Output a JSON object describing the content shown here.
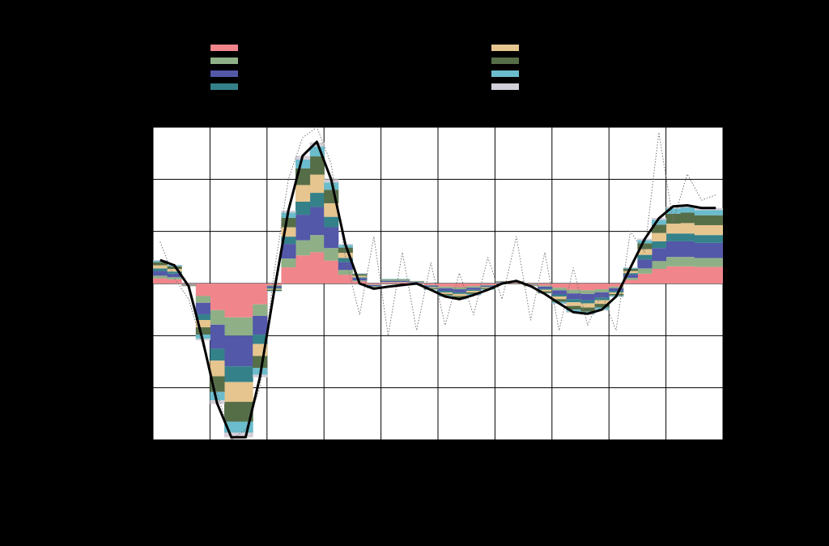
{
  "chart_data": {
    "type": "bar",
    "stacked": true,
    "grid": true,
    "xlim": [
      0,
      100
    ],
    "xticks": [
      0,
      10,
      20,
      30,
      40,
      50,
      60,
      70,
      80,
      90,
      100
    ],
    "ylim": [
      -3,
      3
    ],
    "yticks": [
      -3,
      -2,
      -1,
      0,
      1,
      2,
      3
    ],
    "x": [
      1.25,
      3.75,
      6.25,
      8.75,
      11.25,
      13.75,
      16.25,
      18.75,
      21.25,
      23.75,
      26.25,
      28.75,
      31.25,
      33.75,
      36.25,
      38.75,
      41.25,
      43.75,
      46.25,
      48.75,
      51.25,
      53.75,
      56.25,
      58.75,
      61.25,
      63.75,
      66.25,
      68.75,
      71.25,
      73.75,
      76.25,
      78.75,
      81.25,
      83.75,
      86.25,
      88.75,
      91.25,
      93.75,
      96.25,
      98.75
    ],
    "series": [
      {
        "type": "bar",
        "color": "#f0868c",
        "values": [
          0.1,
          0.08,
          -0.01,
          -0.24,
          -0.51,
          -0.65,
          -0.65,
          -0.4,
          -0.03,
          0.31,
          0.54,
          0.6,
          0.44,
          0.17,
          0.04,
          -0.02,
          0.02,
          0.02,
          0.01,
          -0.03,
          -0.06,
          -0.07,
          -0.05,
          -0.03,
          0.01,
          0.01,
          -0.01,
          -0.04,
          -0.08,
          -0.12,
          -0.13,
          -0.11,
          -0.06,
          0.07,
          0.19,
          0.28,
          0.33,
          0.33,
          0.32,
          0.32
        ]
      },
      {
        "type": "bar",
        "color": "#8fb087",
        "values": [
          0.05,
          0.04,
          -0.01,
          -0.13,
          -0.28,
          -0.35,
          -0.35,
          -0.22,
          -0.02,
          0.17,
          0.29,
          0.33,
          0.24,
          0.09,
          0.02,
          -0.01,
          0.01,
          0.01,
          0.01,
          -0.01,
          -0.03,
          -0.04,
          -0.03,
          -0.01,
          0.01,
          0.01,
          -0.01,
          -0.02,
          -0.05,
          -0.07,
          -0.07,
          -0.06,
          -0.03,
          0.04,
          0.1,
          0.15,
          0.18,
          0.18,
          0.17,
          0.17
        ]
      },
      {
        "type": "bar",
        "color": "#5358a8",
        "values": [
          0.09,
          0.07,
          -0.01,
          -0.22,
          -0.46,
          -0.59,
          -0.59,
          -0.36,
          -0.03,
          0.28,
          0.49,
          0.54,
          0.4,
          0.15,
          0.04,
          -0.02,
          0.02,
          0.02,
          0.01,
          -0.02,
          -0.05,
          -0.06,
          -0.04,
          -0.02,
          0.01,
          0.01,
          -0.01,
          -0.04,
          -0.08,
          -0.11,
          -0.12,
          -0.1,
          -0.05,
          0.06,
          0.17,
          0.25,
          0.3,
          0.3,
          0.29,
          0.29
        ]
      },
      {
        "type": "bar",
        "color": "#34818a",
        "values": [
          0.05,
          0.04,
          0,
          -0.11,
          -0.23,
          -0.3,
          -0.3,
          -0.18,
          -0.02,
          0.14,
          0.25,
          0.27,
          0.2,
          0.08,
          0.02,
          -0.01,
          0.01,
          0.01,
          0.01,
          -0.01,
          -0.03,
          -0.03,
          -0.02,
          -0.01,
          0.01,
          0.01,
          0,
          -0.02,
          -0.04,
          -0.06,
          -0.06,
          -0.05,
          -0.03,
          0.03,
          0.09,
          0.13,
          0.15,
          0.15,
          0.15,
          0.15
        ]
      },
      {
        "type": "bar",
        "color": "#e6c58f",
        "values": [
          0.06,
          0.05,
          -0.01,
          -0.14,
          -0.3,
          -0.38,
          -0.38,
          -0.23,
          -0.02,
          0.18,
          0.32,
          0.35,
          0.26,
          0.1,
          0.03,
          -0.01,
          0.01,
          0.01,
          0.01,
          -0.02,
          -0.03,
          -0.04,
          -0.03,
          -0.02,
          0.01,
          0.01,
          -0.01,
          -0.03,
          -0.05,
          -0.07,
          -0.08,
          -0.07,
          -0.03,
          0.04,
          0.11,
          0.16,
          0.19,
          0.2,
          0.19,
          0.19
        ]
      },
      {
        "type": "bar",
        "color": "#566e48",
        "values": [
          0.06,
          0.05,
          -0.01,
          -0.14,
          -0.3,
          -0.38,
          -0.38,
          -0.23,
          -0.02,
          0.18,
          0.32,
          0.35,
          0.26,
          0.1,
          0.03,
          -0.01,
          0.01,
          0.01,
          0,
          -0.02,
          -0.03,
          -0.04,
          -0.03,
          -0.02,
          0,
          0,
          -0.01,
          -0.03,
          -0.05,
          -0.07,
          -0.08,
          -0.07,
          -0.03,
          0.04,
          0.11,
          0.16,
          0.19,
          0.2,
          0.19,
          0.19
        ]
      },
      {
        "type": "bar",
        "color": "#6bbccc",
        "values": [
          0.03,
          0.02,
          0,
          -0.08,
          -0.16,
          -0.21,
          -0.21,
          -0.13,
          -0.01,
          0.1,
          0.17,
          0.19,
          0.14,
          0.05,
          0.01,
          -0.01,
          0.01,
          0.01,
          0,
          -0.01,
          -0.02,
          -0.02,
          -0.02,
          -0.01,
          0,
          0,
          0,
          -0.01,
          -0.03,
          -0.04,
          -0.04,
          -0.04,
          -0.02,
          0.02,
          0.06,
          0.09,
          0.1,
          0.1,
          0.1,
          0.1
        ]
      },
      {
        "type": "bar",
        "color": "#d3cfd8",
        "values": [
          0.01,
          0.01,
          0,
          -0.03,
          -0.07,
          -0.09,
          -0.09,
          -0.05,
          0,
          0.04,
          0.07,
          0.08,
          0.06,
          0.02,
          0.01,
          0,
          0,
          0,
          0,
          0,
          -0.01,
          -0.01,
          -0.01,
          0,
          0,
          0,
          0,
          -0.01,
          -0.01,
          -0.02,
          -0.02,
          -0.02,
          -0.01,
          0.01,
          0.03,
          0.04,
          0.04,
          0.04,
          0.04,
          0.04
        ]
      },
      {
        "type": "line",
        "color": "#777777",
        "dashed": true,
        "values": [
          0.8,
          0.1,
          -0.3,
          -1.2,
          -2.1,
          -3.0,
          -2.8,
          -2.0,
          0.2,
          2.0,
          2.8,
          3.0,
          2.3,
          0.5,
          -0.6,
          0.9,
          -1.0,
          0.6,
          -0.9,
          0.4,
          -0.8,
          0.2,
          -0.6,
          0.5,
          -0.3,
          0.9,
          -0.7,
          0.6,
          -0.9,
          0.3,
          -0.8,
          -0.2,
          -0.9,
          1.0,
          0.6,
          2.9,
          1.2,
          2.1,
          1.6,
          1.7
        ]
      },
      {
        "type": "line",
        "color": "#000000",
        "values": [
          0.45,
          0.35,
          -0.05,
          -1.1,
          -2.3,
          -2.95,
          -2.95,
          -1.8,
          -0.15,
          1.4,
          2.45,
          2.72,
          2.0,
          0.75,
          0.0,
          -0.1,
          -0.06,
          -0.03,
          0.0,
          -0.12,
          -0.25,
          -0.3,
          -0.22,
          -0.12,
          0.0,
          0.05,
          -0.05,
          -0.2,
          -0.38,
          -0.55,
          -0.58,
          -0.5,
          -0.25,
          0.3,
          0.85,
          1.25,
          1.48,
          1.5,
          1.45,
          1.45
        ]
      }
    ]
  }
}
